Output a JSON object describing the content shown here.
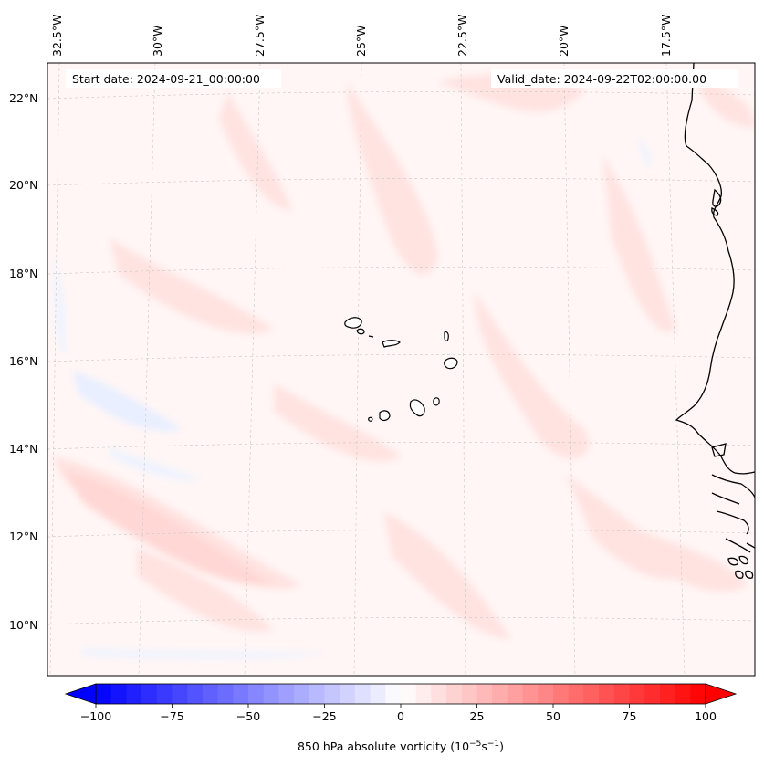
{
  "header": {
    "start_date": "Start date: 2024-09-21_00:00:00",
    "valid_date": "Valid_date: 2024-09-22T02:00:00.00"
  },
  "longitude_labels": [
    "32.5°W",
    "30°W",
    "27.5°W",
    "25°W",
    "22.5°W",
    "20°W",
    "17.5°W"
  ],
  "latitude_labels": [
    "22°N",
    "20°N",
    "18°N",
    "16°N",
    "14°N",
    "12°N",
    "10°N"
  ],
  "colorbar": {
    "label_prefix": "850 hPa absolute vorticity (10",
    "label_exp1": "−5",
    "label_mid": "s",
    "label_exp2": "−1",
    "label_suffix": ")",
    "min": -100,
    "max": 100,
    "ticks": [
      "−100",
      "−75",
      "−50",
      "−25",
      "0",
      "25",
      "50",
      "75",
      "100"
    ],
    "tick_values": [
      -100,
      -75,
      -50,
      -25,
      0,
      25,
      50,
      75,
      100
    ],
    "low_color": "#0000ff",
    "mid_color": "#ffffff",
    "high_color": "#ff0000"
  },
  "field": {
    "background": "#fff6f5",
    "light_red": "#ffe3e1",
    "medium_red": "#ffd2cf",
    "light_blue": "#eef3ff",
    "blue": "#e2e9ff",
    "coastline": "#000000",
    "gridline": "#c8c8c8"
  }
}
